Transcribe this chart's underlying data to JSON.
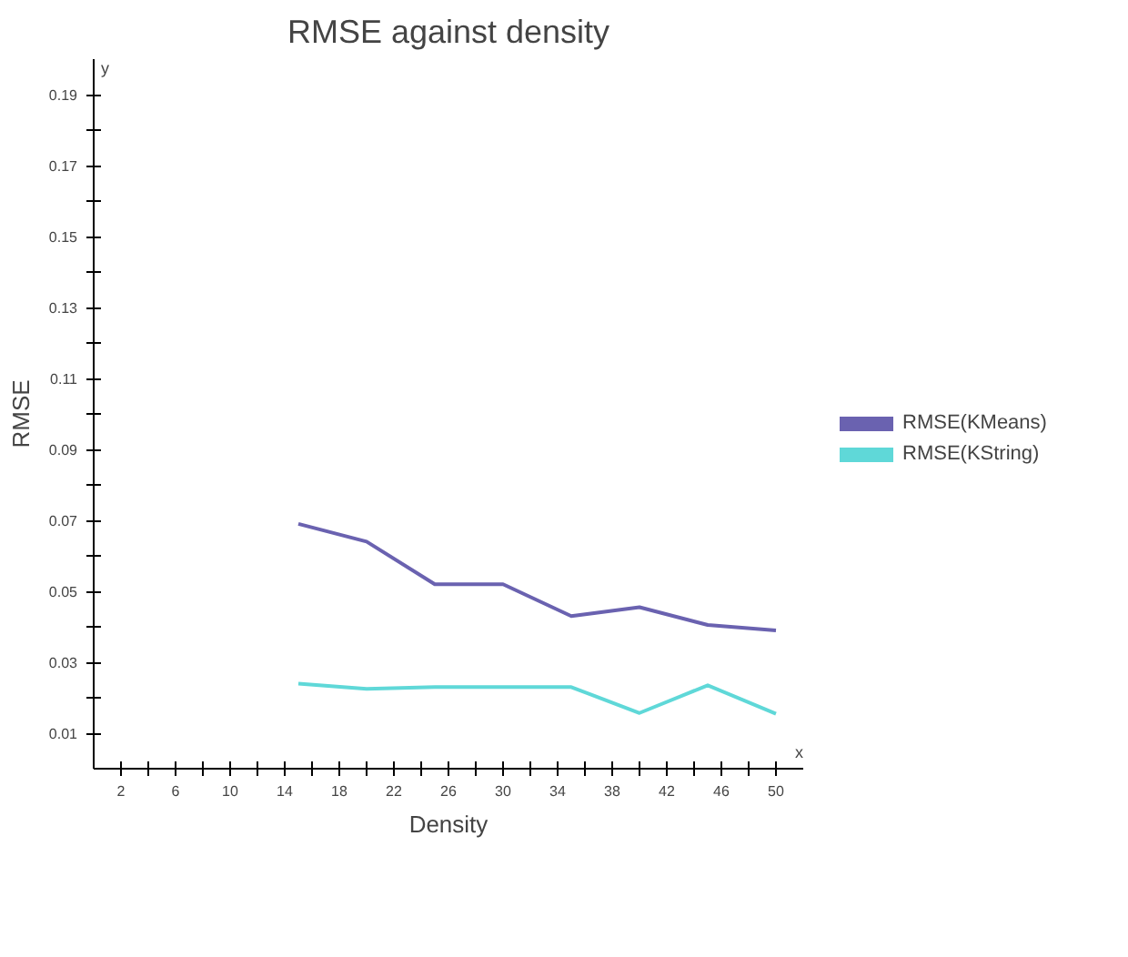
{
  "chart_data": {
    "type": "line",
    "title": "RMSE against density",
    "xlabel": "Density",
    "ylabel": "RMSE",
    "annotations": [
      "y",
      "x"
    ],
    "x": [
      15,
      20,
      25,
      30,
      35,
      40,
      45,
      50
    ],
    "series": [
      {
        "name": "RMSE(KMeans)",
        "color": "#6a62b0",
        "values": [
          0.069,
          0.064,
          0.052,
          0.052,
          0.043,
          0.0455,
          0.0405,
          0.039
        ]
      },
      {
        "name": "RMSE(KString)",
        "color": "#5fd8d8",
        "values": [
          0.024,
          0.0225,
          0.023,
          0.023,
          0.023,
          0.0157,
          0.0235,
          0.0155
        ]
      }
    ],
    "xlim": [
      0,
      52
    ],
    "ylim": [
      0,
      0.2
    ],
    "xticks": [
      2,
      {
        "value": 4,
        "label": null
      },
      6,
      {
        "value": 8,
        "label": null
      },
      10,
      {
        "value": 12,
        "label": null
      },
      14,
      {
        "value": 16,
        "label": null
      },
      18,
      {
        "value": 20,
        "label": null
      },
      22,
      {
        "value": 24,
        "label": null
      },
      26,
      {
        "value": 28,
        "label": null
      },
      30,
      {
        "value": 32,
        "label": null
      },
      34,
      {
        "value": 36,
        "label": null
      },
      38,
      {
        "value": 40,
        "label": null
      },
      42,
      {
        "value": 44,
        "label": null
      },
      46,
      {
        "value": 48,
        "label": null
      },
      50
    ],
    "yticks": [
      0.01,
      {
        "value": 0.02,
        "label": null
      },
      0.03,
      {
        "value": 0.04,
        "label": null
      },
      0.05,
      {
        "value": 0.06,
        "label": null
      },
      0.07,
      {
        "value": 0.08,
        "label": null
      },
      0.09,
      {
        "value": 0.1,
        "label": null
      },
      0.11,
      {
        "value": 0.12,
        "label": null
      },
      0.13,
      {
        "value": 0.14,
        "label": null
      },
      0.15,
      {
        "value": 0.16,
        "label": null
      },
      0.17,
      {
        "value": 0.18,
        "label": null
      },
      0.19
    ],
    "grid": false,
    "legend": "right",
    "marker": "none",
    "line_style": "solid"
  }
}
